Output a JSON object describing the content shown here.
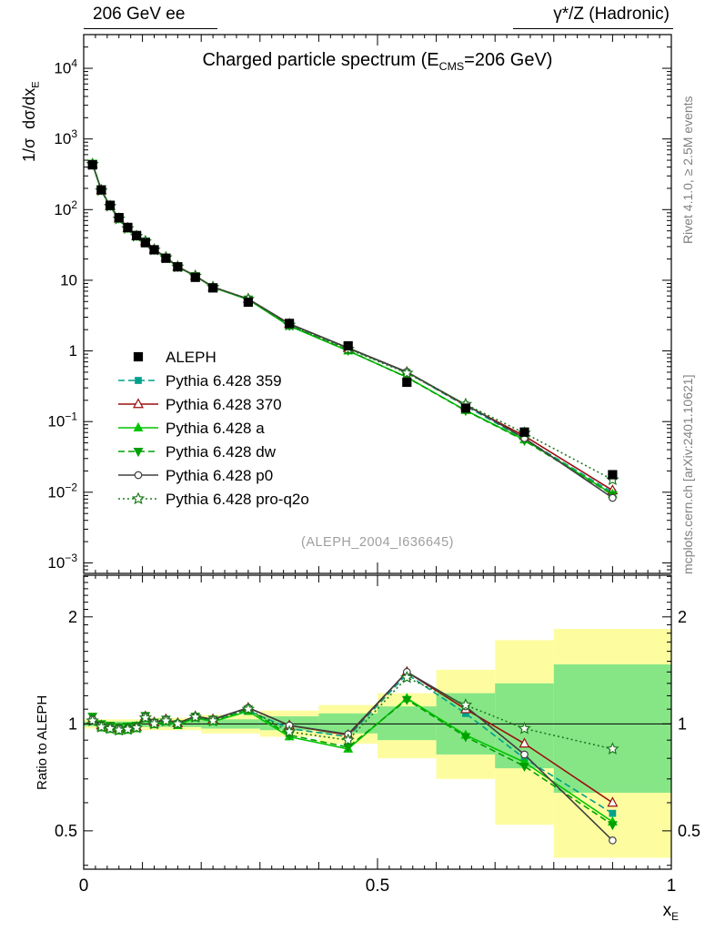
{
  "header": {
    "left": "206 GeV ee",
    "right": "γ*/Z (Hadronic)"
  },
  "side_notes": {
    "top_right": "Rivet 4.1.0, ≥ 2.5M events",
    "bottom_right": "mcplots.cern.ch [arXiv:2401.10621]"
  },
  "watermark": "(ALEPH_2004_I636645)",
  "chart_data": {
    "type": "line",
    "title": {
      "pre": "Charged particle spectrum (E",
      "sub": "CMS",
      "post": "=206 GeV)"
    },
    "xlabel": {
      "pre": "x",
      "sub": "E"
    },
    "ylabel_main": {
      "pre": "1/σ  dσ/dx",
      "sub": "E"
    },
    "ylabel_ratio": "Ratio to ALEPH",
    "grid": false,
    "legend_position": "inside-left",
    "axes": {
      "xlim": [
        0,
        1
      ],
      "x_major_ticks": [
        0,
        0.5,
        1
      ],
      "x_tick_labels": [
        "0",
        "0.5",
        "1"
      ],
      "ylog_main_exponents": [
        -3,
        -2,
        -1,
        0,
        1,
        2,
        3,
        4
      ],
      "ylim_main": [
        0.00071,
        30000
      ],
      "ylim_ratio": [
        0.39,
        2.62
      ],
      "y_ratio_ticks": [
        0.5,
        1,
        2
      ]
    },
    "x": [
      0.015,
      0.03,
      0.045,
      0.06,
      0.075,
      0.09,
      0.105,
      0.12,
      0.14,
      0.16,
      0.19,
      0.22,
      0.28,
      0.35,
      0.45,
      0.55,
      0.65,
      0.75,
      0.9
    ],
    "reference": {
      "name": "ALEPH",
      "color": "#000000",
      "marker": "square",
      "marker_filled": true,
      "marker_size": 9,
      "values": [
        430,
        190,
        115,
        77,
        56,
        43,
        34,
        27,
        20.5,
        15.5,
        11.0,
        7.8,
        4.9,
        2.45,
        1.18,
        0.36,
        0.155,
        0.071,
        0.0177
      ]
    },
    "series": [
      {
        "name": "Pythia 6.428 359",
        "color": "#00A08B",
        "line": "dashed",
        "marker": "square",
        "marker_filled": true,
        "marker_size": 6.5,
        "ratio": [
          1.02,
          0.98,
          0.97,
          0.96,
          0.965,
          0.975,
          1.04,
          1.0,
          1.02,
          1.0,
          1.045,
          1.02,
          1.09,
          0.97,
          0.92,
          1.38,
          1.07,
          0.8,
          0.56
        ]
      },
      {
        "name": "Pythia 6.428 370",
        "color": "#9A0E0E",
        "line": "solid",
        "marker": "triangle-up",
        "marker_filled": false,
        "marker_size": 9,
        "ratio": [
          1.03,
          0.99,
          0.975,
          0.97,
          0.97,
          0.98,
          1.05,
          1.01,
          1.03,
          1.005,
          1.05,
          1.03,
          1.11,
          0.99,
          0.93,
          1.4,
          1.1,
          0.88,
          0.6
        ]
      },
      {
        "name": "Pythia 6.428 a",
        "color": "#00C400",
        "line": "solid",
        "marker": "triangle-up",
        "marker_filled": true,
        "marker_size": 8,
        "ratio": [
          1.02,
          0.975,
          0.965,
          0.955,
          0.96,
          0.97,
          1.035,
          0.995,
          1.015,
          0.99,
          1.04,
          1.015,
          1.085,
          0.92,
          0.85,
          1.18,
          0.93,
          0.78,
          0.53
        ]
      },
      {
        "name": "Pythia 6.428 dw",
        "color": "#00A000",
        "line": "dashed",
        "marker": "triangle-down",
        "marker_filled": true,
        "marker_size": 8,
        "ratio": [
          1.05,
          1.0,
          0.99,
          0.98,
          0.985,
          0.99,
          1.055,
          1.01,
          1.03,
          1.0,
          1.05,
          1.03,
          1.1,
          0.93,
          0.86,
          1.17,
          0.92,
          0.76,
          0.52
        ]
      },
      {
        "name": "Pythia 6.428 p0",
        "color": "#404040",
        "line": "solid",
        "marker": "circle",
        "marker_filled": false,
        "marker_size": 7.5,
        "ratio": [
          1.03,
          0.99,
          0.975,
          0.97,
          0.97,
          0.98,
          1.05,
          1.01,
          1.03,
          1.005,
          1.05,
          1.03,
          1.11,
          0.99,
          0.935,
          1.4,
          1.12,
          0.82,
          0.47
        ]
      },
      {
        "name": "Pythia 6.428 pro-q2o",
        "color": "#1E7A1E",
        "line": "dotted",
        "marker": "star",
        "marker_filled": false,
        "marker_size": 11,
        "ratio": [
          1.02,
          0.98,
          0.97,
          0.96,
          0.965,
          0.975,
          1.04,
          1.0,
          1.02,
          1.0,
          1.045,
          1.02,
          1.1,
          0.95,
          0.9,
          1.35,
          1.13,
          0.97,
          0.85
        ]
      }
    ],
    "bands": {
      "yellow": {
        "color": "#FDFDA0",
        "steps": [
          [
            0,
            0.1,
            0.97,
            1.03
          ],
          [
            0.1,
            0.2,
            0.96,
            1.04
          ],
          [
            0.2,
            0.3,
            0.94,
            1.06
          ],
          [
            0.3,
            0.4,
            0.92,
            1.09
          ],
          [
            0.4,
            0.5,
            0.88,
            1.13
          ],
          [
            0.5,
            0.6,
            0.8,
            1.22
          ],
          [
            0.6,
            0.7,
            0.7,
            1.42
          ],
          [
            0.7,
            0.8,
            0.52,
            1.72
          ],
          [
            0.8,
            1.0,
            0.42,
            1.85
          ]
        ]
      },
      "green": {
        "color": "#86E686",
        "steps": [
          [
            0,
            0.1,
            0.985,
            1.015
          ],
          [
            0.1,
            0.2,
            0.98,
            1.02
          ],
          [
            0.2,
            0.3,
            0.97,
            1.03
          ],
          [
            0.3,
            0.4,
            0.96,
            1.05
          ],
          [
            0.4,
            0.5,
            0.94,
            1.07
          ],
          [
            0.5,
            0.6,
            0.9,
            1.12
          ],
          [
            0.6,
            0.7,
            0.82,
            1.22
          ],
          [
            0.7,
            0.8,
            0.75,
            1.3
          ],
          [
            0.8,
            1.0,
            0.64,
            1.47
          ]
        ]
      }
    }
  }
}
